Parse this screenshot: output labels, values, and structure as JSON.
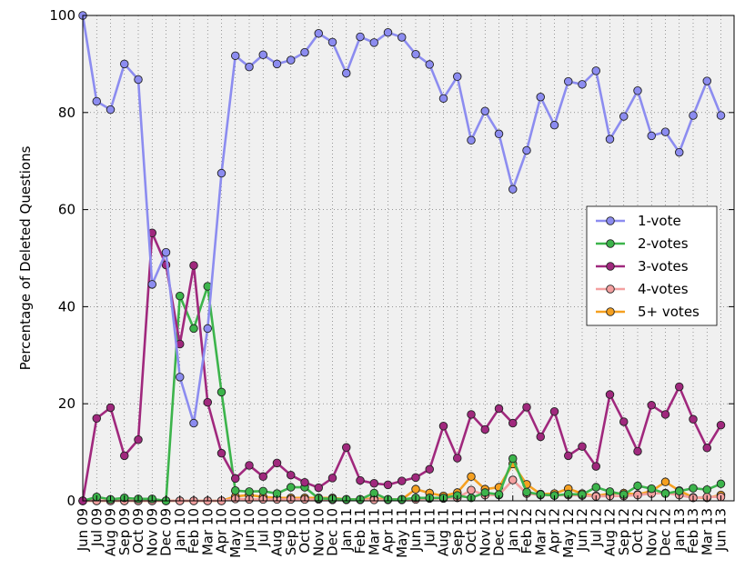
{
  "chart_data": {
    "type": "line",
    "ylabel": "Percentage of Deleted Questions",
    "xlabel": "",
    "ylim": [
      0,
      100
    ],
    "yticks": [
      0,
      20,
      40,
      60,
      80,
      100
    ],
    "grid": true,
    "legend_position": "right",
    "categories": [
      "Jun 09",
      "Jul 09",
      "Aug 09",
      "Sep 09",
      "Oct 09",
      "Nov 09",
      "Dec 09",
      "Jan 10",
      "Feb 10",
      "Mar 10",
      "Apr 10",
      "May 10",
      "Jun 10",
      "Jul 10",
      "Aug 10",
      "Sep 10",
      "Oct 10",
      "Nov 10",
      "Dec 10",
      "Jan 11",
      "Feb 11",
      "Mar 11",
      "Apr 11",
      "May 11",
      "Jun 11",
      "Jul 11",
      "Aug 11",
      "Sep 11",
      "Oct 11",
      "Nov 11",
      "Dec 11",
      "Jan 12",
      "Feb 12",
      "Mar 12",
      "Apr 12",
      "May 12",
      "Jun 12",
      "Jul 12",
      "Aug 12",
      "Sep 12",
      "Oct 12",
      "Nov 12",
      "Dec 12",
      "Jan 13",
      "Feb 13",
      "Mar 13",
      "Jun 13"
    ],
    "series": [
      {
        "name": "1-vote",
        "color": "#8c8cf0",
        "values": [
          100,
          82.3,
          80.6,
          90,
          86.8,
          44.6,
          51.2,
          25.5,
          16,
          35.5,
          67.5,
          91.7,
          89.4,
          91.9,
          90,
          90.8,
          92.4,
          96.3,
          94.5,
          88.1,
          95.6,
          94.4,
          96.5,
          95.5,
          92,
          89.9,
          82.9,
          87.4,
          74.3,
          80.3,
          75.6,
          64.2,
          72.2,
          83.2,
          77.4,
          86.4,
          85.8,
          88.6,
          74.5,
          79.2,
          84.5,
          75.2,
          76,
          71.8,
          79.4,
          86.5,
          79.4
        ]
      },
      {
        "name": "2-votes",
        "color": "#3cb44b",
        "values": [
          0,
          0.8,
          0.3,
          0.6,
          0.4,
          0.4,
          0,
          42.2,
          35.5,
          44.2,
          22.4,
          2.1,
          1.9,
          2,
          1.5,
          2.8,
          2.8,
          0.5,
          0.4,
          0.3,
          0.3,
          1.6,
          0.3,
          0.3,
          0.6,
          0.6,
          0.6,
          1.1,
          0.6,
          1.7,
          1.3,
          8.7,
          1.8,
          1.3,
          1.1,
          1.4,
          1.3,
          2.8,
          1.9,
          1.3,
          3.1,
          2.5,
          1.5,
          2,
          2.6,
          2.3,
          3.5
        ]
      },
      {
        "name": "3-votes",
        "color": "#a0287d",
        "values": [
          0,
          17,
          19.2,
          9.3,
          12.6,
          55.2,
          48.6,
          32.3,
          48.5,
          20.3,
          9.8,
          4.6,
          7.3,
          5,
          7.8,
          5.3,
          3.8,
          2.7,
          4.7,
          11,
          4.2,
          3.6,
          3.3,
          4.1,
          4.8,
          6.5,
          15.4,
          8.8,
          17.8,
          14.7,
          19,
          16,
          19.3,
          13.2,
          18.4,
          9.3,
          11.2,
          7.1,
          21.9,
          16.3,
          10.2,
          19.7,
          17.8,
          23.5,
          16.8,
          10.9,
          15.6
        ]
      },
      {
        "name": "4-votes",
        "color": "#f4a0a0",
        "values": [
          0,
          0,
          0,
          0,
          0,
          0,
          0,
          0,
          0,
          0,
          0,
          0.4,
          0.3,
          0.3,
          0.3,
          0.3,
          0.3,
          0.3,
          0.2,
          0.2,
          0.2,
          0.2,
          0.2,
          0.2,
          0.3,
          0.5,
          0.5,
          0.6,
          2.2,
          1.2,
          1.2,
          4.3,
          1.5,
          1.2,
          1.1,
          1.2,
          1.1,
          0.9,
          1,
          1,
          1.2,
          1.5,
          1.6,
          1.2,
          0.6,
          0.8,
          0.8
        ]
      },
      {
        "name": "5+ votes",
        "color": "#f5a020",
        "values": [
          0,
          0,
          0,
          0,
          0,
          0,
          0,
          0,
          0,
          0,
          0,
          0.9,
          1.2,
          0.8,
          0.6,
          0.6,
          0.6,
          0.6,
          0.6,
          0.3,
          0.3,
          0.5,
          0.3,
          0.3,
          2.4,
          1.6,
          1,
          1.7,
          5,
          2.4,
          2.8,
          7.6,
          3.4,
          1.4,
          1.5,
          2.5,
          1.5,
          1,
          1.5,
          1.6,
          1.3,
          2,
          3.9,
          2.1,
          0.7,
          0.6,
          1.2
        ]
      }
    ]
  }
}
